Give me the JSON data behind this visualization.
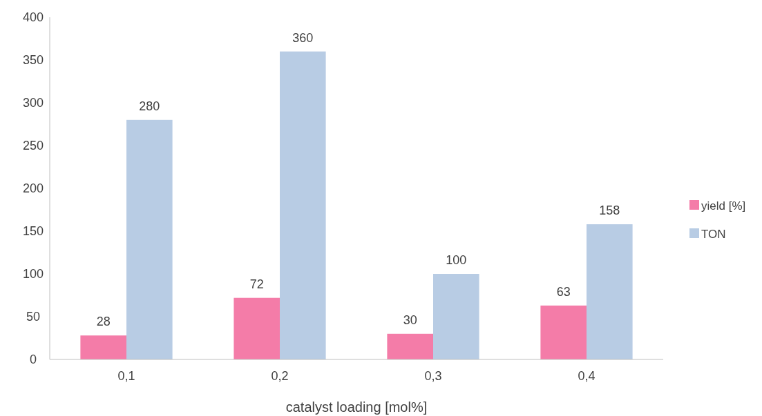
{
  "chart_data": {
    "type": "bar",
    "xlabel": "catalyst loading [mol%]",
    "categories": [
      "0,1",
      "0,2",
      "0,3",
      "0,4"
    ],
    "series": [
      {
        "name": "yield [%]",
        "color": "#f47ca8",
        "values": [
          28,
          72,
          30,
          63
        ]
      },
      {
        "name": "TON",
        "color": "#b8cce4",
        "values": [
          280,
          360,
          100,
          158
        ]
      }
    ],
    "ylim": [
      0,
      400
    ],
    "yticks": [
      0,
      50,
      100,
      150,
      200,
      250,
      300,
      350,
      400
    ],
    "grid": false,
    "legend": "right",
    "data_labels": true
  }
}
